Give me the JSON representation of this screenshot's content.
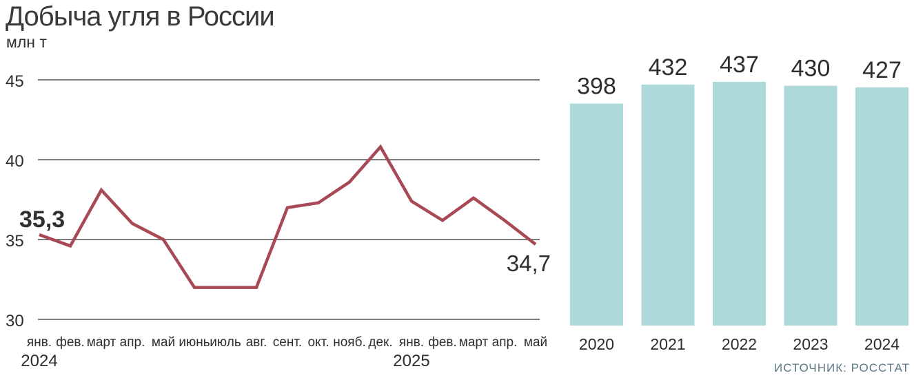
{
  "header": {
    "title": "Добыча угля в России",
    "units": "млн т"
  },
  "source": "ИСТОЧНИК: РОССТАТ",
  "colors": {
    "line": "#a84a55",
    "bar": "#aed9da",
    "grid": "#2b2b2b",
    "text": "#2e2e2e",
    "source_text": "#5c7884"
  },
  "chart_data": [
    {
      "type": "line",
      "title": "Добыча угля в России",
      "ylabel": "млн т",
      "categories": [
        "янв.",
        "фев.",
        "март",
        "апр.",
        "май",
        "июнь",
        "июль",
        "авг.",
        "сент.",
        "окт.",
        "нояб.",
        "дек.",
        "янв.",
        "фев.",
        "март",
        "апр.",
        "май"
      ],
      "values": [
        35.3,
        34.6,
        38.1,
        36.0,
        35.0,
        32.0,
        32.0,
        32.0,
        37.0,
        37.3,
        38.6,
        40.8,
        37.4,
        36.2,
        37.6,
        36.2,
        34.7
      ],
      "year_markers": [
        {
          "index": 0,
          "label": "2024"
        },
        {
          "index": 12,
          "label": "2025"
        }
      ],
      "ylim": [
        30,
        45
      ],
      "yticks": [
        45,
        40,
        35,
        30
      ],
      "grid": "horizontal",
      "first_point_label": "35,3",
      "last_point_label": "34,7"
    },
    {
      "type": "bar",
      "categories": [
        "2020",
        "2021",
        "2022",
        "2023",
        "2024"
      ],
      "values": [
        398,
        432,
        437,
        430,
        427
      ],
      "ylim": [
        0,
        460
      ],
      "grid": "off",
      "data_labels": [
        "398",
        "432",
        "437",
        "430",
        "427"
      ]
    }
  ]
}
